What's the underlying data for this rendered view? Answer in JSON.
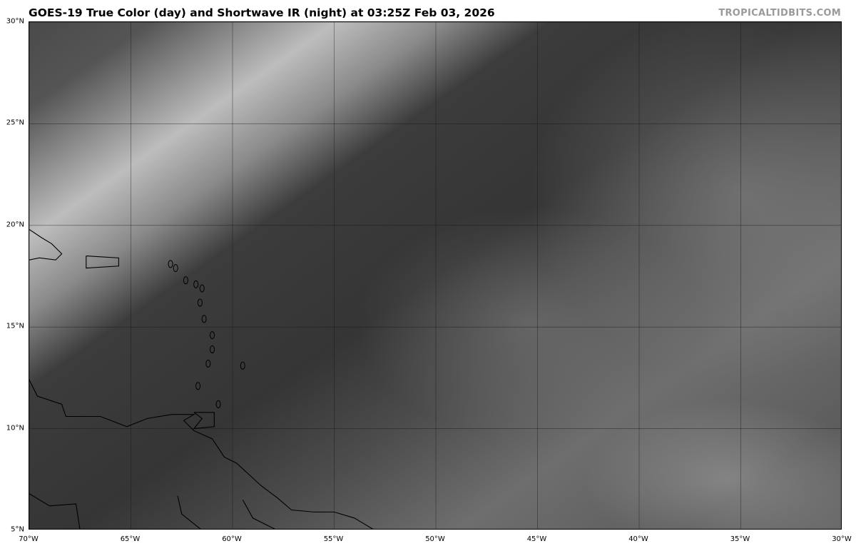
{
  "title": "GOES-19 True Color (day) and Shortwave IR (night) at 03:25Z Feb 03, 2026",
  "credit": "TROPICALTIDBITS.COM",
  "map": {
    "type": "satellite-image",
    "projection": "equirectangular",
    "lon_range": [
      -70,
      -30
    ],
    "lat_range": [
      5,
      30
    ],
    "grid": true,
    "colormap": "grayscale",
    "lat_labels": [
      "5°N",
      "10°N",
      "15°N",
      "20°N",
      "25°N",
      "30°N"
    ],
    "lon_labels": [
      "70°W",
      "65°W",
      "60°W",
      "55°W",
      "50°W",
      "45°W",
      "40°W",
      "35°W",
      "30°W"
    ]
  }
}
